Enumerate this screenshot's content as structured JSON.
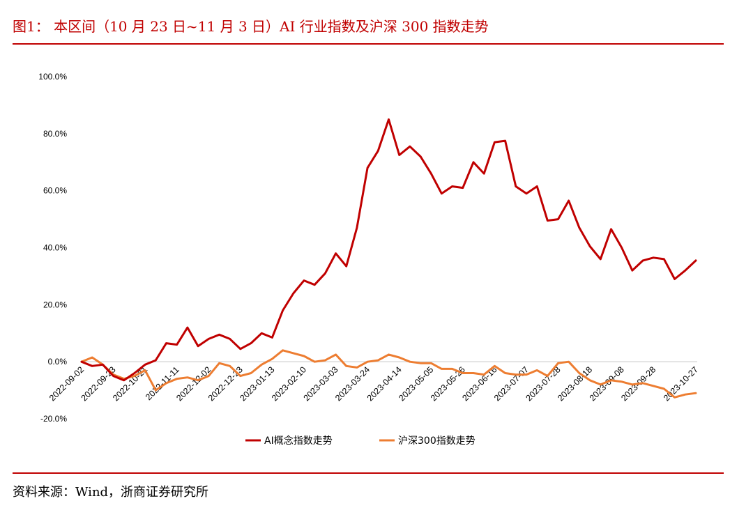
{
  "figure": {
    "title": "图1：  本区间（10 月 23 日~11 月 3 日）AI 行业指数及沪深 300 指数走势",
    "source": "资料来源：Wind，浙商证券研究所"
  },
  "colors": {
    "accent": "#c00000",
    "series_ai": "#c00000",
    "series_hs300": "#ed7d31",
    "axis": "#d9d9d9"
  },
  "chart_data": {
    "type": "line",
    "ylim": [
      -20,
      100
    ],
    "yticks": [
      "100.0%",
      "80.0%",
      "60.0%",
      "40.0%",
      "20.0%",
      "0.0%",
      "-20.0%"
    ],
    "ytick_values": [
      100,
      80,
      60,
      40,
      20,
      0,
      -20
    ],
    "xtick_labels": [
      "2022-09-02",
      "2022-09-23",
      "2022-10-21",
      "2022-11-11",
      "2022-12-02",
      "2022-12-23",
      "2023-01-13",
      "2023-02-10",
      "2023-03-03",
      "2023-03-24",
      "2023-04-14",
      "2023-05-05",
      "2023-05-26",
      "2023-06-16",
      "2023-07-07",
      "2023-07-28",
      "2023-08-18",
      "2023-09-08",
      "2023-09-28",
      "2023-10-27"
    ],
    "xtick_index": [
      0,
      3,
      6,
      9,
      12,
      15,
      18,
      21,
      24,
      27,
      30,
      33,
      36,
      39,
      42,
      45,
      48,
      51,
      54,
      58
    ],
    "legend_position": "bottom",
    "series": [
      {
        "name": "AI概念指数走势",
        "values": [
          0.0,
          -1.5,
          -1.0,
          -5.0,
          -6.5,
          -4.0,
          -1.0,
          0.5,
          6.5,
          6.0,
          12.0,
          5.5,
          8.0,
          9.5,
          8.0,
          4.5,
          6.5,
          10.0,
          8.5,
          18.0,
          24.0,
          28.5,
          27.0,
          31.0,
          38.0,
          33.5,
          47.0,
          68.0,
          74.0,
          85.0,
          72.5,
          75.5,
          72.0,
          66.0,
          59.0,
          61.5,
          61.0,
          70.0,
          66.0,
          77.0,
          77.5,
          61.5,
          59.0,
          61.5,
          49.5,
          50.0,
          56.5,
          47.0,
          40.5,
          36.0,
          46.5,
          40.0,
          32.0,
          35.5,
          36.5,
          36.0,
          29.0,
          32.0,
          35.5
        ]
      },
      {
        "name": "沪深300指数走势",
        "values": [
          0.0,
          1.5,
          -1.0,
          -4.5,
          -6.0,
          -5.0,
          -3.0,
          -10.0,
          -7.5,
          -6.0,
          -5.5,
          -6.5,
          -5.0,
          -0.5,
          -1.5,
          -5.0,
          -4.0,
          -1.0,
          1.0,
          4.0,
          3.0,
          2.0,
          0.0,
          0.5,
          2.5,
          -1.5,
          -2.0,
          0.0,
          0.5,
          2.5,
          1.5,
          0.0,
          -0.5,
          -0.5,
          -2.5,
          -2.5,
          -4.0,
          -4.0,
          -4.5,
          -1.5,
          -4.0,
          -4.5,
          -4.5,
          -3.0,
          -5.0,
          -0.5,
          0.0,
          -4.0,
          -6.5,
          -8.0,
          -6.5,
          -7.0,
          -8.0,
          -7.5,
          -8.5,
          -9.5,
          -12.5,
          -11.5,
          -11.0
        ]
      }
    ]
  }
}
